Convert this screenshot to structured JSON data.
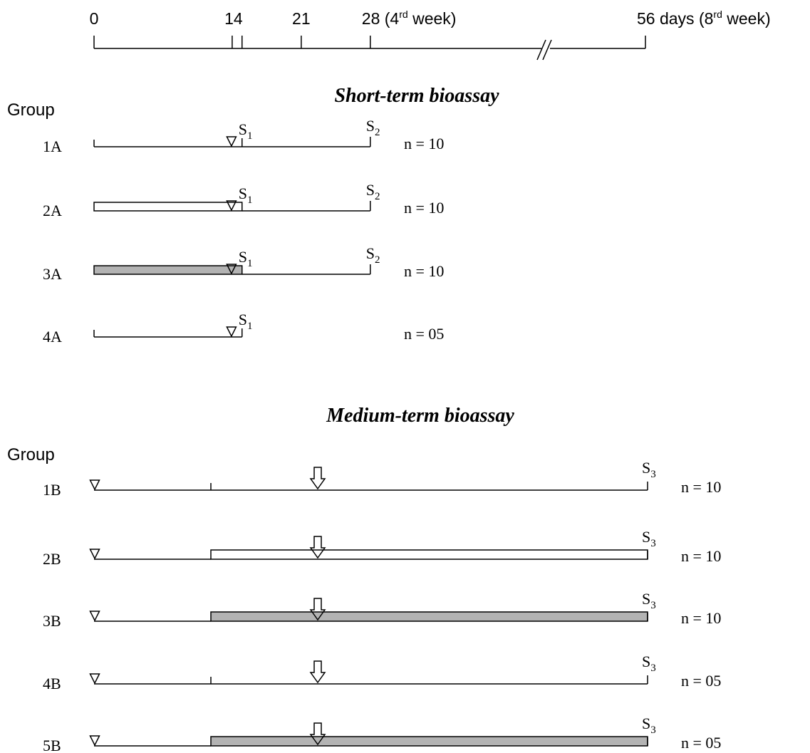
{
  "axis": {
    "ticks": [
      {
        "day": 0,
        "label": "0"
      },
      {
        "day": 14,
        "label": "14"
      },
      {
        "day": 15,
        "label": ""
      },
      {
        "day": 21,
        "label": "21"
      },
      {
        "day": 28,
        "label": "28 (4",
        "sup": "rd",
        "tail": " week)"
      },
      {
        "day": 56,
        "label": "56 days (8",
        "sup": "rd",
        "tail": " week)"
      }
    ],
    "break_between": [
      28,
      56
    ]
  },
  "legend_fills": {
    "open": "#ffffff",
    "shaded": "#b3b3b3",
    "marker_black": "#000000",
    "marker_grey": "#808080",
    "marker_open": "#ffffff"
  },
  "short_term": {
    "title": "Short-term bioassay",
    "group_header": "Group",
    "rows": [
      {
        "label": "1A",
        "bar": "none",
        "marker": "black",
        "n": "n = 10",
        "s1": "S",
        "s1_sub": "1",
        "s2": "S",
        "s2_sub": "2"
      },
      {
        "label": "2A",
        "bar": "open",
        "marker": "black",
        "n": "n = 10",
        "s1": "S",
        "s1_sub": "1",
        "s2": "S",
        "s2_sub": "2"
      },
      {
        "label": "3A",
        "bar": "shaded",
        "marker": "black",
        "n": "n = 10",
        "s1": "S",
        "s1_sub": "1",
        "s2": "S",
        "s2_sub": "2"
      },
      {
        "label": "4A",
        "bar": "none",
        "marker": "open",
        "n": "n = 05",
        "s1": "S",
        "s1_sub": "1",
        "s2": "",
        "s2_sub": ""
      }
    ]
  },
  "medium_term": {
    "title": "Medium-term bioassay",
    "group_header": "Group",
    "rows": [
      {
        "label": "1B",
        "bar": "none",
        "marker": "grey",
        "n": "n = 10",
        "s3": "S",
        "s3_sub": "3"
      },
      {
        "label": "2B",
        "bar": "open",
        "marker": "grey",
        "n": "n = 10",
        "s3": "S",
        "s3_sub": "3"
      },
      {
        "label": "3B",
        "bar": "shaded",
        "marker": "grey",
        "n": "n = 10",
        "s3": "S",
        "s3_sub": "3"
      },
      {
        "label": "4B",
        "bar": "none",
        "marker": "open",
        "n": "n = 05",
        "s3": "S",
        "s3_sub": "3"
      },
      {
        "label": "5B",
        "bar": "shaded",
        "marker": "open",
        "n": "n = 05",
        "s3": "S",
        "s3_sub": "3"
      }
    ]
  }
}
